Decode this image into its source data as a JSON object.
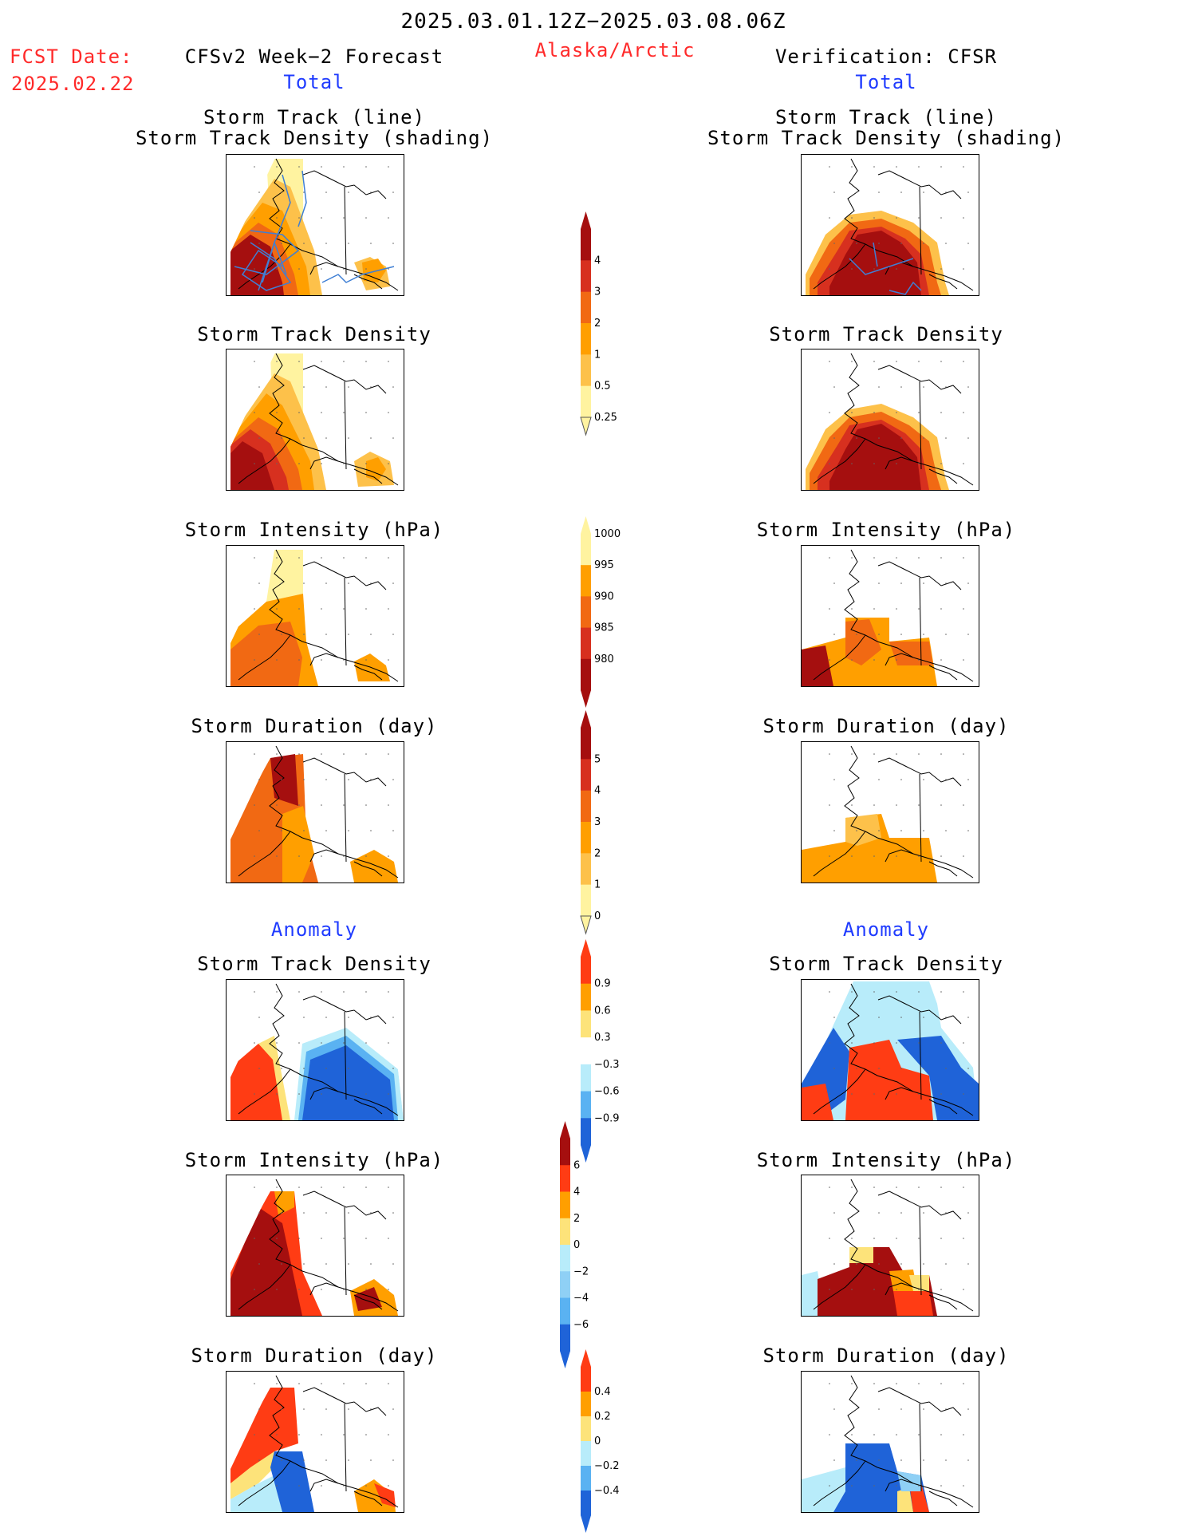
{
  "header": {
    "date_range": "2025.03.01.12Z−2025.03.08.06Z",
    "fcst_label": "FCST Date:",
    "fcst_date": "2025.02.22",
    "left_title": "CFSv2 Week−2 Forecast",
    "region": "Alaska/Arctic",
    "right_title": "Verification: CFSR",
    "left_total": "Total",
    "right_total": "Total"
  },
  "sections": {
    "anomaly_left": "Anomaly",
    "anomaly_right": "Anomaly"
  },
  "panel_titles": {
    "track_line": "Storm Track (line)",
    "track_shading": "Storm Track Density (shading)",
    "density": "Storm Track Density",
    "intensity": "Storm Intensity (hPa)",
    "duration": "Storm Duration (day)"
  },
  "colorbars": {
    "density": {
      "labels": [
        "4",
        "3",
        "2",
        "1",
        "0.5",
        "0.25"
      ],
      "colors": [
        "#a50f0f",
        "#d7301f",
        "#f16913",
        "#ff9f00",
        "#fdc14a",
        "#fff3a0"
      ]
    },
    "intensity": {
      "labels": [
        "1000",
        "995",
        "990",
        "985",
        "980"
      ],
      "colors": [
        "#fff3a0",
        "#ff9f00",
        "#f16913",
        "#d7301f",
        "#a50f0f"
      ]
    },
    "duration": {
      "labels": [
        "5",
        "4",
        "3",
        "2",
        "1",
        "0"
      ],
      "colors": [
        "#a50f0f",
        "#d7301f",
        "#f16913",
        "#ff9f00",
        "#fdc14a",
        "#fff3a0"
      ]
    },
    "anom_density": {
      "labels": [
        "0.9",
        "0.6",
        "0.3",
        "−0.3",
        "−0.6",
        "−0.9"
      ],
      "colors": [
        "#ff3c14",
        "#ff9f00",
        "#fde37a",
        "#ffffff",
        "#b8ecfa",
        "#5ab2f2",
        "#1f63d8"
      ]
    },
    "anom_intensity": {
      "labels": [
        "6",
        "4",
        "2",
        "0",
        "−2",
        "−4",
        "−6"
      ],
      "colors": [
        "#a50f0f",
        "#ff3c14",
        "#ff9f00",
        "#fde37a",
        "#b8ecfa",
        "#8fd0f5",
        "#5ab2f2",
        "#1f63d8"
      ]
    },
    "anom_duration": {
      "labels": [
        "0.4",
        "0.2",
        "0",
        "−0.2",
        "−0.4"
      ],
      "colors": [
        "#ff3c14",
        "#ff9f00",
        "#fde37a",
        "#b8ecfa",
        "#5ab2f2",
        "#1f63d8"
      ]
    }
  },
  "colors": {
    "dark_red": "#a50f0f",
    "red": "#d7301f",
    "orange_red": "#f16913",
    "orange": "#ff9f00",
    "light_orange": "#fdc14a",
    "pale_yellow": "#fff3a0",
    "anom_red": "#ff3c14",
    "anom_blue": "#1f63d8",
    "track_line": "#3f7fd4"
  }
}
